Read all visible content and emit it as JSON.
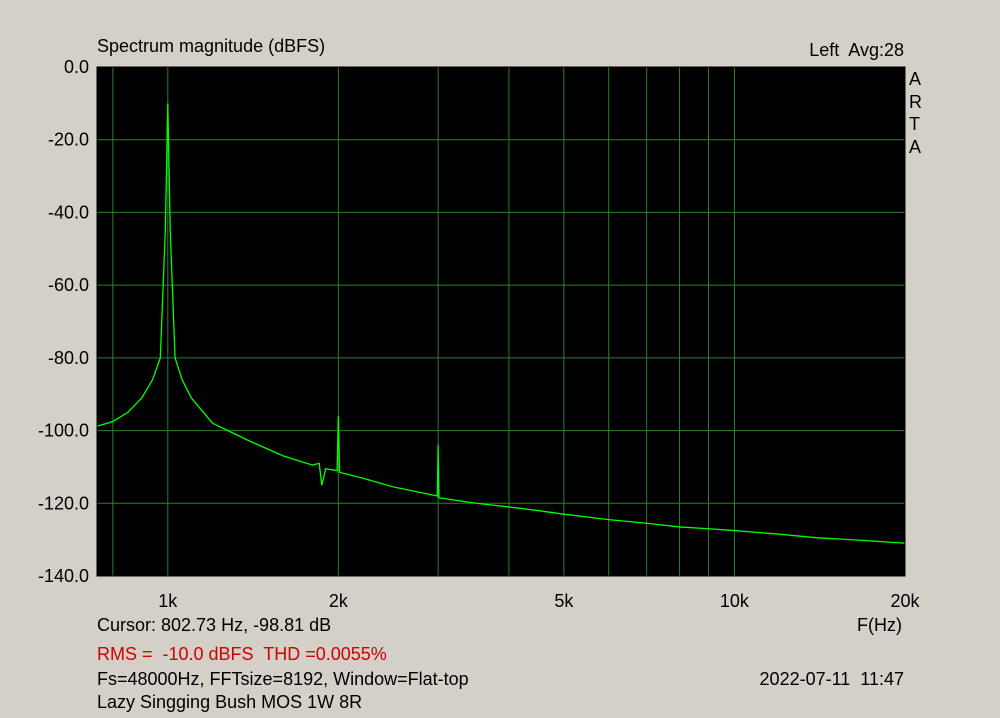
{
  "chart_data": {
    "type": "line",
    "title": "Spectrum magnitude (dBFS)",
    "channel_label": "Left  Avg:28",
    "side_label": "ARTA",
    "xlabel": "F(Hz)",
    "x_scale": "log",
    "xlim": [
      750,
      20000
    ],
    "ylim": [
      -140,
      0
    ],
    "grid": true,
    "background": "#000000",
    "grid_color": "#2f7d2f",
    "line_color": "#00ff00",
    "y_ticks": [
      0,
      -20,
      -40,
      -60,
      -80,
      -100,
      -120,
      -140
    ],
    "y_tick_labels": [
      "0.0",
      "-20.0",
      "-40.0",
      "-60.0",
      "-80.0",
      "-100.0",
      "-120.0",
      "-140.0"
    ],
    "x_grid_lines": [
      800,
      1000,
      2000,
      3000,
      4000,
      5000,
      6000,
      7000,
      8000,
      9000,
      10000,
      20000
    ],
    "x_ticks": [
      1000,
      2000,
      5000,
      10000,
      20000
    ],
    "x_tick_labels": [
      "1k",
      "2k",
      "5k",
      "10k",
      "20k"
    ],
    "series": [
      {
        "x": [
          750,
          800,
          850,
          900,
          940,
          970,
          990,
          1000,
          1010,
          1030,
          1060,
          1100,
          1200,
          1400,
          1600,
          1800,
          1850,
          1870,
          1900,
          1990,
          2000,
          2010,
          2200,
          2500,
          2990,
          3000,
          3010,
          3500,
          4000,
          4500,
          5000,
          6000,
          7000,
          8000,
          9000,
          10000,
          12000,
          14000,
          16000,
          18000,
          20000
        ],
        "y": [
          -98.8,
          -97.5,
          -95.0,
          -91.0,
          -86.0,
          -80.0,
          -45.0,
          -10.0,
          -45.0,
          -80.0,
          -86.0,
          -91.0,
          -98.0,
          -103.0,
          -107.0,
          -109.5,
          -109.0,
          -115.0,
          -110.5,
          -111.0,
          -96.0,
          -111.5,
          -113.0,
          -115.5,
          -118.0,
          -104.0,
          -118.5,
          -120.0,
          -121.0,
          -122.0,
          -123.0,
          -124.5,
          -125.5,
          -126.5,
          -127.0,
          -127.5,
          -128.5,
          -129.5,
          -130.0,
          -130.5,
          -131.0
        ]
      }
    ]
  },
  "cursor_text": "Cursor: 802.73 Hz, -98.81 dB",
  "rms_text": "RMS =  -10.0 dBFS  THD =0.0055%",
  "fs_text": "Fs=48000Hz, FFTsize=8192, Window=Flat-top",
  "date_text": "2022-07-11  11:47",
  "description": "Lazy Singging Bush MOS 1W 8R"
}
